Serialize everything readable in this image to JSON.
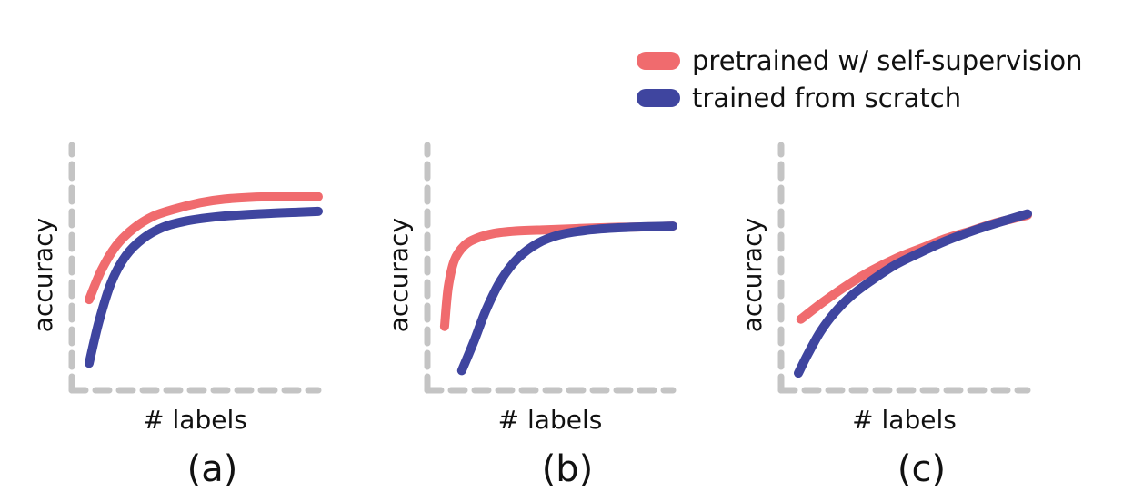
{
  "legend": {
    "items": [
      {
        "label": "pretrained w/ self-supervision",
        "color": "#F06B6E"
      },
      {
        "label": "trained from scratch",
        "color": "#3F459F"
      }
    ]
  },
  "axis_color": "#C4C4C4",
  "chart_data": [
    {
      "type": "line",
      "caption": "(a)",
      "xlabel": "# labels",
      "ylabel": "accuracy",
      "grid": false,
      "series": [
        {
          "name": "pretrained w/ self-supervision",
          "color": "#F06B6E",
          "x": [
            0.07,
            0.12,
            0.18,
            0.25,
            0.33,
            0.42,
            0.52,
            0.62,
            0.74,
            0.86,
            1.0
          ],
          "y": [
            0.37,
            0.49,
            0.59,
            0.66,
            0.71,
            0.74,
            0.765,
            0.78,
            0.788,
            0.79,
            0.79
          ]
        },
        {
          "name": "trained from scratch",
          "color": "#3F459F",
          "x": [
            0.07,
            0.11,
            0.16,
            0.22,
            0.29,
            0.37,
            0.46,
            0.56,
            0.67,
            0.8,
            0.92,
            1.0
          ],
          "y": [
            0.11,
            0.28,
            0.44,
            0.55,
            0.62,
            0.665,
            0.69,
            0.705,
            0.715,
            0.722,
            0.727,
            0.73
          ]
        }
      ]
    },
    {
      "type": "line",
      "caption": "(b)",
      "xlabel": "# labels",
      "ylabel": "accuracy",
      "grid": false,
      "series": [
        {
          "name": "pretrained w/ self-supervision",
          "color": "#F06B6E",
          "x": [
            0.07,
            0.085,
            0.11,
            0.15,
            0.2,
            0.27,
            0.36,
            0.48,
            0.62,
            0.78,
            0.9,
            1.0
          ],
          "y": [
            0.26,
            0.42,
            0.53,
            0.59,
            0.62,
            0.64,
            0.65,
            0.655,
            0.66,
            0.665,
            0.667,
            0.67
          ]
        },
        {
          "name": "trained from scratch",
          "color": "#3F459F",
          "x": [
            0.14,
            0.19,
            0.24,
            0.3,
            0.37,
            0.45,
            0.54,
            0.64,
            0.76,
            0.88,
            1.0
          ],
          "y": [
            0.08,
            0.2,
            0.33,
            0.45,
            0.54,
            0.6,
            0.635,
            0.652,
            0.662,
            0.667,
            0.67
          ]
        }
      ]
    },
    {
      "type": "line",
      "caption": "(c)",
      "xlabel": "# labels",
      "ylabel": "accuracy",
      "grid": false,
      "series": [
        {
          "name": "pretrained w/ self-supervision",
          "color": "#F06B6E",
          "x": [
            0.08,
            0.17,
            0.27,
            0.37,
            0.47,
            0.57,
            0.67,
            0.77,
            0.86,
            0.94,
            1.0
          ],
          "y": [
            0.29,
            0.36,
            0.43,
            0.49,
            0.54,
            0.58,
            0.62,
            0.65,
            0.68,
            0.7,
            0.715
          ]
        },
        {
          "name": "trained from scratch",
          "color": "#3F459F",
          "x": [
            0.07,
            0.11,
            0.16,
            0.22,
            0.29,
            0.37,
            0.46,
            0.56,
            0.67,
            0.79,
            0.9,
            1.0
          ],
          "y": [
            0.07,
            0.15,
            0.24,
            0.32,
            0.39,
            0.45,
            0.51,
            0.56,
            0.61,
            0.655,
            0.69,
            0.72
          ]
        }
      ]
    }
  ]
}
